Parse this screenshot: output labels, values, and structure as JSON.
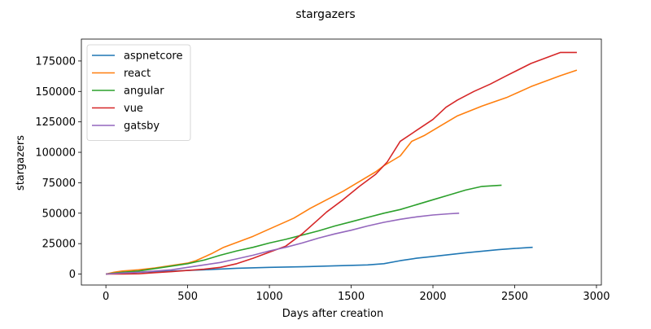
{
  "chart_data": {
    "type": "line",
    "title": "stargazers",
    "xlabel": "Days after creation",
    "ylabel": "stargazers",
    "xlim": [
      -150,
      3030
    ],
    "ylim": [
      -9000,
      193000
    ],
    "xticks": [
      0,
      500,
      1000,
      1500,
      2000,
      2500,
      3000
    ],
    "yticks": [
      0,
      25000,
      50000,
      75000,
      100000,
      125000,
      150000,
      175000
    ],
    "grid": false,
    "legend_position": "top-left",
    "series": [
      {
        "name": "aspnetcore",
        "color": "#1f77b4",
        "points": [
          [
            0,
            0
          ],
          [
            200,
            1500
          ],
          [
            400,
            2500
          ],
          [
            600,
            3500
          ],
          [
            800,
            4800
          ],
          [
            1000,
            5500
          ],
          [
            1200,
            6000
          ],
          [
            1400,
            6800
          ],
          [
            1600,
            7500
          ],
          [
            1700,
            8500
          ],
          [
            1800,
            11000
          ],
          [
            1900,
            13000
          ],
          [
            2000,
            14500
          ],
          [
            2200,
            17500
          ],
          [
            2400,
            20000
          ],
          [
            2500,
            21000
          ],
          [
            2610,
            22000
          ]
        ]
      },
      {
        "name": "react",
        "color": "#ff7f0e",
        "points": [
          [
            0,
            0
          ],
          [
            50,
            1500
          ],
          [
            100,
            2500
          ],
          [
            200,
            3500
          ],
          [
            300,
            5000
          ],
          [
            400,
            7000
          ],
          [
            500,
            9000
          ],
          [
            550,
            11000
          ],
          [
            650,
            17000
          ],
          [
            720,
            22000
          ],
          [
            800,
            26000
          ],
          [
            900,
            31000
          ],
          [
            1000,
            37000
          ],
          [
            1100,
            43000
          ],
          [
            1150,
            46000
          ],
          [
            1250,
            54000
          ],
          [
            1350,
            61000
          ],
          [
            1450,
            68000
          ],
          [
            1550,
            76000
          ],
          [
            1650,
            84000
          ],
          [
            1700,
            89000
          ],
          [
            1800,
            97000
          ],
          [
            1870,
            109000
          ],
          [
            1950,
            114000
          ],
          [
            2050,
            122000
          ],
          [
            2150,
            130000
          ],
          [
            2300,
            138000
          ],
          [
            2450,
            145000
          ],
          [
            2600,
            154000
          ],
          [
            2780,
            163000
          ],
          [
            2880,
            167500
          ]
        ]
      },
      {
        "name": "angular",
        "color": "#2ca02c",
        "points": [
          [
            0,
            0
          ],
          [
            100,
            1500
          ],
          [
            200,
            2500
          ],
          [
            300,
            4500
          ],
          [
            400,
            6500
          ],
          [
            500,
            8500
          ],
          [
            600,
            11500
          ],
          [
            700,
            15500
          ],
          [
            800,
            19000
          ],
          [
            900,
            22000
          ],
          [
            1000,
            25500
          ],
          [
            1100,
            28500
          ],
          [
            1200,
            32000
          ],
          [
            1300,
            35500
          ],
          [
            1400,
            39500
          ],
          [
            1500,
            43000
          ],
          [
            1600,
            46500
          ],
          [
            1700,
            50000
          ],
          [
            1800,
            53000
          ],
          [
            1900,
            57000
          ],
          [
            2000,
            61000
          ],
          [
            2100,
            65000
          ],
          [
            2200,
            69000
          ],
          [
            2300,
            72000
          ],
          [
            2420,
            73000
          ]
        ]
      },
      {
        "name": "vue",
        "color": "#d62728",
        "points": [
          [
            0,
            0
          ],
          [
            100,
            0
          ],
          [
            200,
            200
          ],
          [
            300,
            1200
          ],
          [
            400,
            2000
          ],
          [
            500,
            3000
          ],
          [
            600,
            4000
          ],
          [
            700,
            5500
          ],
          [
            800,
            8500
          ],
          [
            900,
            13000
          ],
          [
            1000,
            18000
          ],
          [
            1100,
            23000
          ],
          [
            1200,
            33000
          ],
          [
            1300,
            45000
          ],
          [
            1350,
            51000
          ],
          [
            1450,
            61000
          ],
          [
            1550,
            72000
          ],
          [
            1650,
            82000
          ],
          [
            1720,
            92000
          ],
          [
            1800,
            109000
          ],
          [
            1900,
            118000
          ],
          [
            2000,
            127000
          ],
          [
            2080,
            137000
          ],
          [
            2150,
            143000
          ],
          [
            2250,
            150000
          ],
          [
            2350,
            156000
          ],
          [
            2450,
            163000
          ],
          [
            2600,
            173000
          ],
          [
            2700,
            178000
          ],
          [
            2780,
            182000
          ],
          [
            2880,
            182000
          ]
        ]
      },
      {
        "name": "gatsby",
        "color": "#9467bd",
        "points": [
          [
            0,
            0
          ],
          [
            100,
            800
          ],
          [
            200,
            1500
          ],
          [
            300,
            2500
          ],
          [
            400,
            3500
          ],
          [
            500,
            5500
          ],
          [
            600,
            7500
          ],
          [
            700,
            9500
          ],
          [
            800,
            12500
          ],
          [
            900,
            15500
          ],
          [
            1000,
            19000
          ],
          [
            1100,
            22000
          ],
          [
            1200,
            25500
          ],
          [
            1300,
            29500
          ],
          [
            1400,
            33000
          ],
          [
            1500,
            36000
          ],
          [
            1600,
            39500
          ],
          [
            1700,
            42500
          ],
          [
            1800,
            45000
          ],
          [
            1900,
            47000
          ],
          [
            2000,
            48500
          ],
          [
            2100,
            49500
          ],
          [
            2160,
            50000
          ]
        ]
      }
    ]
  }
}
